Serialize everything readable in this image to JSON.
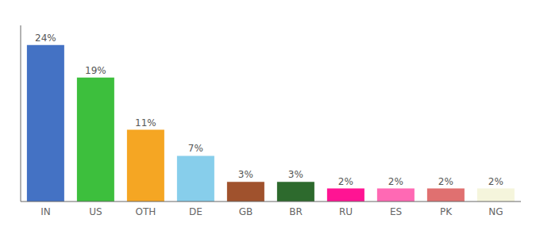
{
  "chart_data": {
    "type": "bar",
    "categories": [
      "IN",
      "US",
      "OTH",
      "DE",
      "GB",
      "BR",
      "RU",
      "ES",
      "PK",
      "NG"
    ],
    "values": [
      24,
      19,
      11,
      7,
      3,
      3,
      2,
      2,
      2,
      2
    ],
    "value_labels": [
      "24%",
      "19%",
      "11%",
      "7%",
      "3%",
      "3%",
      "2%",
      "2%",
      "2%",
      "2%"
    ],
    "colors": [
      "#4472c4",
      "#3dbf3d",
      "#f5a623",
      "#87ceeb",
      "#a0522d",
      "#2d6a2d",
      "#ff1493",
      "#ff69b4",
      "#e07070",
      "#f5f5dc"
    ],
    "ylim": [
      0,
      27
    ],
    "data_labels": true,
    "tick_labels": "x",
    "grid": false
  }
}
